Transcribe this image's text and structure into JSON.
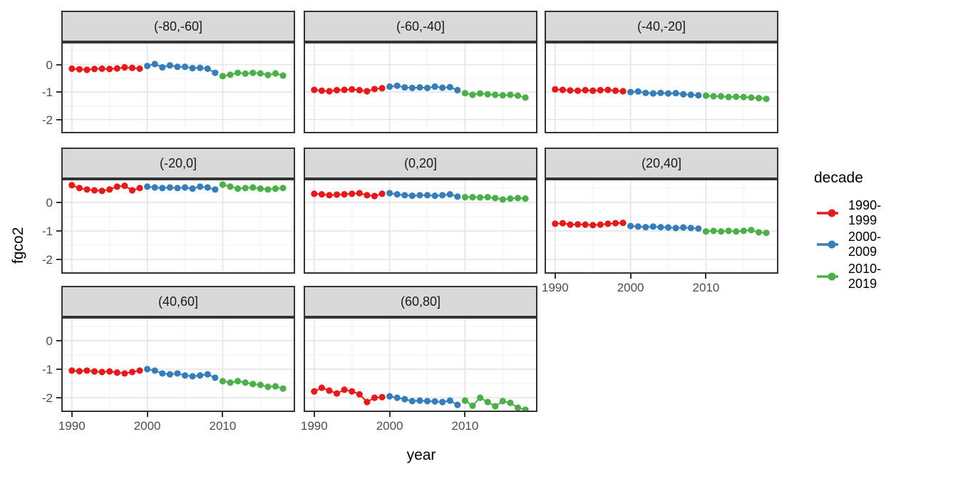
{
  "figure": {
    "ylabel": "fgco2",
    "xlabel": "year",
    "legend_title": "decade"
  },
  "chart_data": {
    "type": "scatter",
    "title": "",
    "xlabel": "year",
    "ylabel": "fgco2",
    "facet_variable": "latitude band",
    "x_ticks": [
      1990,
      2000,
      2010
    ],
    "y_ticks": [
      0,
      -1,
      -2
    ],
    "x_minor_ticks": [
      1995,
      2005,
      2015
    ],
    "y_minor_ticks": [
      0.5,
      -0.5,
      -1.5
    ],
    "x_range": [
      1988.6,
      2019.6
    ],
    "y_range": [
      -2.5,
      0.82
    ],
    "grid": true,
    "legend_position": "right",
    "legend_title": "decade",
    "point_and_line": true,
    "decades": [
      {
        "name": "1990-1999",
        "color": "#E41A1C",
        "start_year": 1990
      },
      {
        "name": "2000-2009",
        "color": "#377EB8",
        "start_year": 2000
      },
      {
        "name": "2010-2019",
        "color": "#4DAF4A",
        "start_year": 2010
      }
    ],
    "facets": [
      {
        "label": "(-80,-60]",
        "series": {
          "1990-1999": [
            -0.15,
            -0.17,
            -0.19,
            -0.16,
            -0.15,
            -0.16,
            -0.14,
            -0.1,
            -0.12,
            -0.15
          ],
          "2000-2009": [
            -0.05,
            0.02,
            -0.1,
            -0.03,
            -0.08,
            -0.08,
            -0.13,
            -0.12,
            -0.15,
            -0.3
          ],
          "2010-2019": [
            -0.42,
            -0.37,
            -0.3,
            -0.33,
            -0.3,
            -0.32,
            -0.38,
            -0.32,
            -0.4
          ]
        }
      },
      {
        "label": "(-60,-40]",
        "series": {
          "1990-1999": [
            -0.92,
            -0.95,
            -0.97,
            -0.93,
            -0.92,
            -0.9,
            -0.93,
            -0.97,
            -0.89,
            -0.86
          ],
          "2000-2009": [
            -0.8,
            -0.77,
            -0.83,
            -0.85,
            -0.83,
            -0.85,
            -0.8,
            -0.84,
            -0.82,
            -0.93
          ],
          "2010-2019": [
            -1.04,
            -1.1,
            -1.05,
            -1.08,
            -1.1,
            -1.12,
            -1.1,
            -1.13,
            -1.2
          ]
        }
      },
      {
        "label": "(-40,-20]",
        "series": {
          "1990-1999": [
            -0.9,
            -0.92,
            -0.94,
            -0.95,
            -0.93,
            -0.95,
            -0.93,
            -0.92,
            -0.95,
            -0.97
          ],
          "2000-2009": [
            -1.0,
            -0.98,
            -1.03,
            -1.05,
            -1.03,
            -1.05,
            -1.04,
            -1.08,
            -1.1,
            -1.12
          ],
          "2010-2019": [
            -1.13,
            -1.15,
            -1.15,
            -1.18,
            -1.17,
            -1.18,
            -1.2,
            -1.22,
            -1.25
          ]
        }
      },
      {
        "label": "(-20,0]",
        "series": {
          "1990-1999": [
            0.6,
            0.5,
            0.45,
            0.42,
            0.4,
            0.45,
            0.55,
            0.58,
            0.42,
            0.5
          ],
          "2000-2009": [
            0.55,
            0.52,
            0.5,
            0.52,
            0.5,
            0.52,
            0.48,
            0.55,
            0.52,
            0.45
          ],
          "2010-2019": [
            0.62,
            0.55,
            0.48,
            0.5,
            0.52,
            0.48,
            0.45,
            0.48,
            0.5
          ]
        }
      },
      {
        "label": "(0,20]",
        "series": {
          "1990-1999": [
            0.3,
            0.28,
            0.25,
            0.27,
            0.28,
            0.3,
            0.32,
            0.25,
            0.22,
            0.3
          ],
          "2000-2009": [
            0.32,
            0.28,
            0.25,
            0.23,
            0.25,
            0.25,
            0.23,
            0.25,
            0.28,
            0.2
          ],
          "2010-2019": [
            0.18,
            0.18,
            0.17,
            0.18,
            0.15,
            0.1,
            0.13,
            0.15,
            0.13
          ]
        }
      },
      {
        "label": "(20,40]",
        "series": {
          "1990-1999": [
            -0.75,
            -0.73,
            -0.78,
            -0.77,
            -0.78,
            -0.8,
            -0.78,
            -0.75,
            -0.73,
            -0.72
          ],
          "2000-2009": [
            -0.83,
            -0.85,
            -0.87,
            -0.85,
            -0.87,
            -0.88,
            -0.9,
            -0.88,
            -0.9,
            -0.92
          ],
          "2010-2019": [
            -1.02,
            -1.0,
            -1.02,
            -1.0,
            -1.02,
            -1.0,
            -0.97,
            -1.05,
            -1.07
          ]
        }
      },
      {
        "label": "(40,60]",
        "series": {
          "1990-1999": [
            -1.05,
            -1.07,
            -1.05,
            -1.08,
            -1.1,
            -1.08,
            -1.12,
            -1.15,
            -1.1,
            -1.05
          ],
          "2000-2009": [
            -1.0,
            -1.05,
            -1.15,
            -1.18,
            -1.15,
            -1.22,
            -1.25,
            -1.22,
            -1.18,
            -1.3
          ],
          "2010-2019": [
            -1.42,
            -1.47,
            -1.42,
            -1.47,
            -1.52,
            -1.55,
            -1.62,
            -1.6,
            -1.68
          ]
        }
      },
      {
        "label": "(60,80]",
        "series": {
          "1990-1999": [
            -1.78,
            -1.65,
            -1.75,
            -1.85,
            -1.72,
            -1.78,
            -1.88,
            -2.15,
            -2.0,
            -1.98
          ],
          "2000-2009": [
            -1.95,
            -2.0,
            -2.05,
            -2.12,
            -2.1,
            -2.12,
            -2.13,
            -2.15,
            -2.1,
            -2.25
          ],
          "2010-2019": [
            -2.1,
            -2.28,
            -2.0,
            -2.15,
            -2.3,
            -2.12,
            -2.18,
            -2.35,
            -2.42
          ]
        }
      }
    ]
  }
}
